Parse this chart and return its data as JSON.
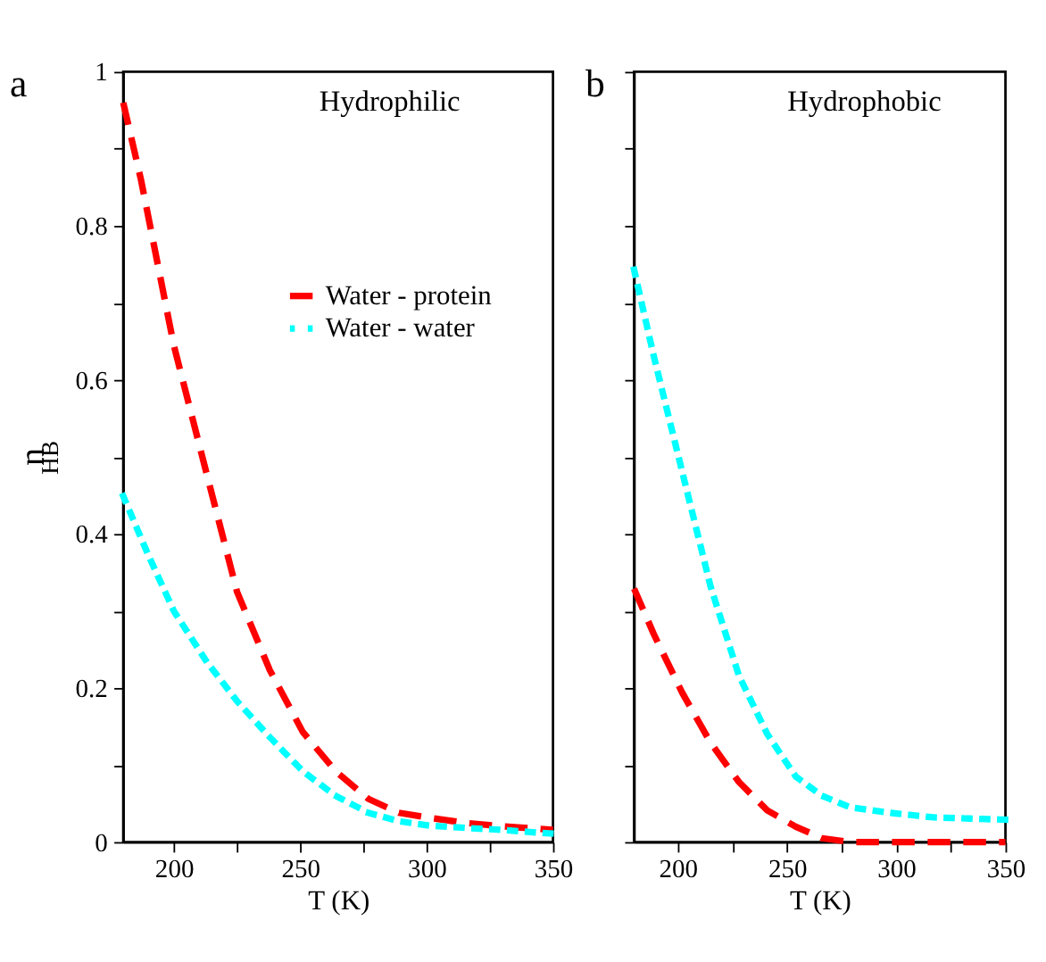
{
  "chart_data": [
    {
      "type": "line",
      "title": "a",
      "annotations": [
        "Hydrophilic"
      ],
      "xlabel": "T (K)",
      "ylabel": "n$_{HB}$",
      "xlim": [
        180,
        350
      ],
      "ylim": [
        0,
        1
      ],
      "xticks": [
        200,
        {
          "value": 225,
          "label": null
        },
        250,
        {
          "value": 275,
          "label": null
        },
        300,
        {
          "value": 325,
          "label": null
        },
        350
      ],
      "yticks": [
        0,
        {
          "value": 0.1,
          "label": null
        },
        0.2,
        {
          "value": 0.3,
          "label": null
        },
        0.4,
        {
          "value": 0.5,
          "label": null
        },
        0.6,
        {
          "value": 0.7,
          "label": null
        },
        0.8,
        {
          "value": 0.9,
          "label": null
        },
        1
      ],
      "legend": "top right",
      "grid": false,
      "series": [
        {
          "name": "Water - protein",
          "color": "#ff0000",
          "line_style": "dashed",
          "x": [
            180,
            187,
            200,
            213,
            225,
            238,
            251,
            264,
            277,
            289,
            302,
            315,
            328,
            350
          ],
          "values": [
            0.96,
            0.86,
            0.645,
            0.478,
            0.325,
            0.223,
            0.143,
            0.092,
            0.056,
            0.038,
            0.031,
            0.025,
            0.021,
            0.016
          ]
        },
        {
          "name": "Water - water",
          "color": "#00ffff",
          "line_style": "dotted",
          "x": [
            180,
            190,
            200,
            213,
            225,
            238,
            251,
            264,
            277,
            289,
            302,
            328,
            350
          ],
          "values": [
            0.449,
            0.372,
            0.3,
            0.234,
            0.183,
            0.136,
            0.092,
            0.06,
            0.038,
            0.027,
            0.021,
            0.016,
            0.011
          ]
        }
      ]
    },
    {
      "type": "line",
      "title": "b",
      "annotations": [
        "Hydrophobic"
      ],
      "xlabel": "T (K)",
      "xlim": [
        180,
        350
      ],
      "ylim": [
        0,
        1
      ],
      "tick_labels": "x",
      "xticks": [
        200,
        {
          "value": 225,
          "label": null
        },
        250,
        {
          "value": 275,
          "label": null
        },
        300,
        {
          "value": 325,
          "label": null
        },
        350
      ],
      "yticks": [
        0,
        {
          "value": 0.1,
          "label": null
        },
        0.2,
        {
          "value": 0.3,
          "label": null
        },
        0.4,
        {
          "value": 0.5,
          "label": null
        },
        0.6,
        {
          "value": 0.7,
          "label": null
        },
        0.8,
        {
          "value": 0.9,
          "label": null
        },
        1
      ],
      "grid": false,
      "series": [
        {
          "color": "#00ffff",
          "line_style": "dotted",
          "x": [
            180,
            189,
            202,
            215,
            228,
            241,
            254,
            266,
            279,
            297,
            317,
            350
          ],
          "values": [
            0.743,
            0.631,
            0.481,
            0.332,
            0.216,
            0.14,
            0.085,
            0.06,
            0.045,
            0.038,
            0.032,
            0.029
          ]
        },
        {
          "color": "#ff0000",
          "line_style": "dashed",
          "x": [
            180,
            189,
            202,
            215,
            228,
            241,
            254,
            266,
            279,
            350
          ],
          "values": [
            0.329,
            0.27,
            0.194,
            0.129,
            0.078,
            0.041,
            0.02,
            0.005,
            0,
            0
          ]
        }
      ]
    }
  ]
}
